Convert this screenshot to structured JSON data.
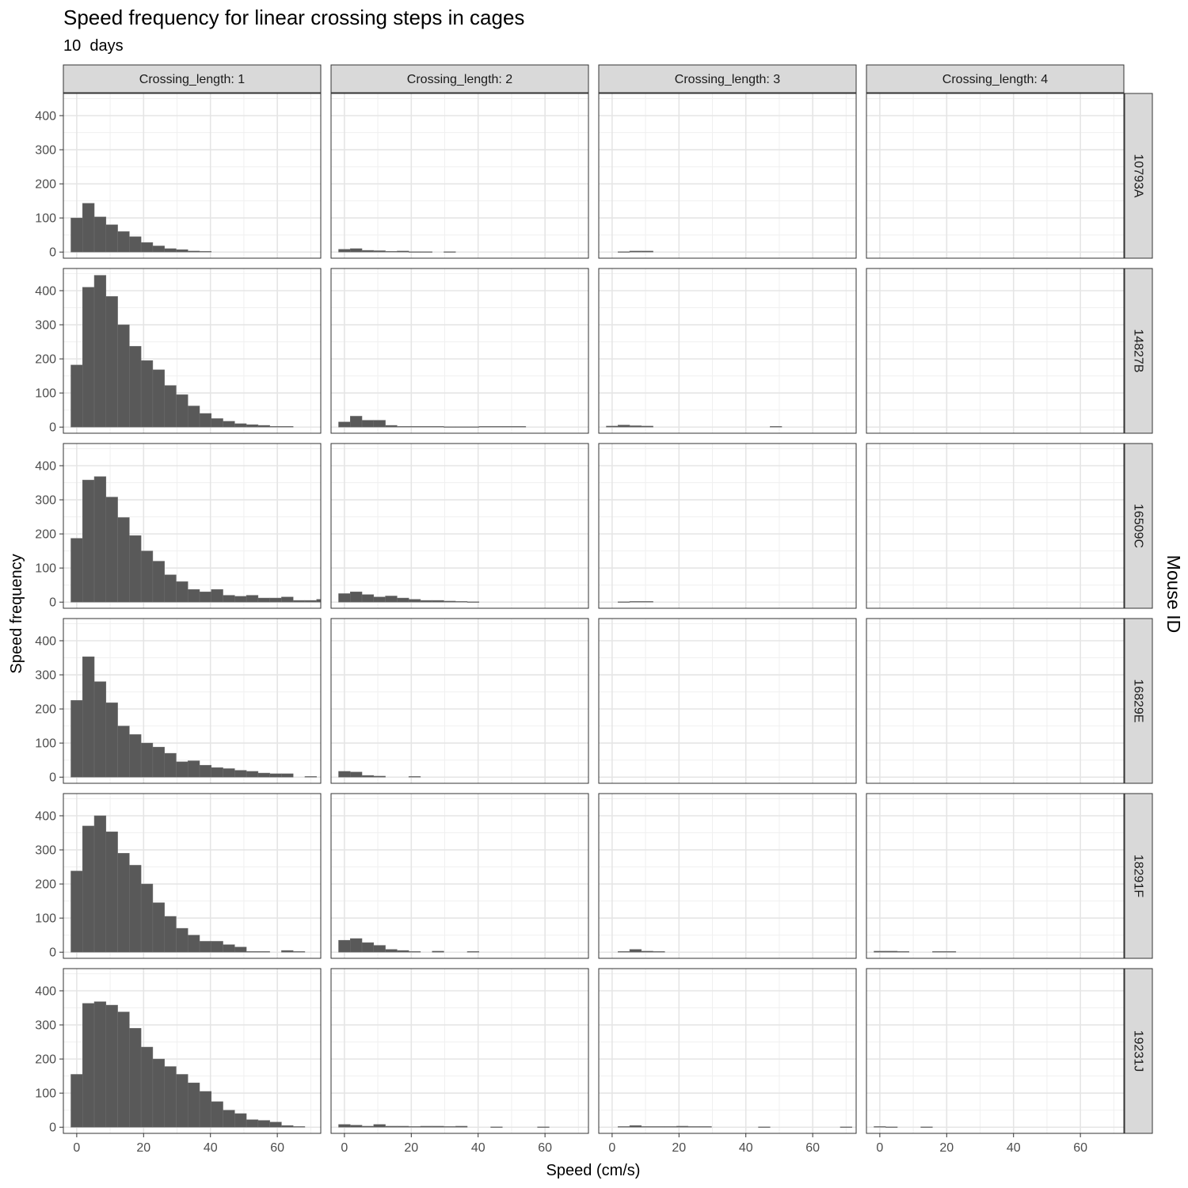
{
  "chart_data": {
    "type": "bar",
    "title": "Speed frequency for linear crossing steps in cages",
    "subtitle": "10  days",
    "xlabel": "Speed (cm/s)",
    "ylabel": "Speed frequency",
    "row_facet_label": "Mouse ID",
    "xlim": [
      -4,
      73
    ],
    "ylim": [
      -18,
      465
    ],
    "x_ticks": [
      0,
      20,
      40,
      60
    ],
    "y_ticks": [
      0,
      100,
      200,
      300,
      400
    ],
    "grid": true,
    "bin_width": 3.5,
    "bin_start": -1.75,
    "columns": [
      "Crossing_length: 1",
      "Crossing_length: 2",
      "Crossing_length: 3",
      "Crossing_length: 4"
    ],
    "rows": [
      "10793A",
      "14827B",
      "16509C",
      "16829E",
      "18291F",
      "19231J"
    ],
    "panels": [
      [
        [
          100,
          143,
          103,
          80,
          60,
          45,
          28,
          18,
          10,
          7,
          3,
          2
        ],
        [
          8,
          10,
          5,
          4,
          2,
          3,
          1,
          1,
          0,
          1
        ],
        [
          0,
          1,
          3,
          3
        ],
        []
      ],
      [
        [
          182,
          410,
          445,
          383,
          300,
          237,
          195,
          168,
          122,
          95,
          62,
          40,
          25,
          17,
          10,
          7,
          5,
          2,
          2
        ],
        [
          15,
          32,
          20,
          20,
          5,
          2,
          2,
          2,
          2,
          1,
          1,
          1,
          2,
          2,
          2,
          2
        ],
        [
          3,
          6,
          4,
          3,
          0,
          0,
          0,
          0,
          0,
          0,
          0,
          0,
          0,
          0,
          2
        ],
        []
      ],
      [
        [
          187,
          358,
          368,
          308,
          248,
          195,
          150,
          120,
          80,
          60,
          37,
          30,
          37,
          20,
          17,
          20,
          12,
          12,
          15,
          5,
          5,
          8,
          0,
          0,
          0,
          0,
          2
        ],
        [
          25,
          30,
          22,
          15,
          18,
          12,
          8,
          5,
          5,
          3,
          2,
          1
        ],
        [
          0,
          1,
          2,
          2
        ],
        []
      ],
      [
        [
          225,
          353,
          280,
          218,
          150,
          125,
          100,
          88,
          70,
          45,
          48,
          35,
          28,
          25,
          20,
          17,
          12,
          10,
          10,
          0,
          2
        ],
        [
          17,
          15,
          5,
          3,
          0,
          0,
          2
        ],
        [],
        []
      ],
      [
        [
          238,
          370,
          400,
          353,
          290,
          255,
          200,
          145,
          105,
          70,
          50,
          32,
          32,
          22,
          15,
          2,
          2,
          0,
          5,
          2
        ],
        [
          35,
          40,
          28,
          20,
          8,
          5,
          2,
          0,
          3,
          0,
          0,
          2
        ],
        [
          0,
          2,
          8,
          3,
          2
        ],
        [
          3,
          3,
          2,
          0,
          0,
          2,
          2
        ]
      ],
      [
        [
          155,
          363,
          368,
          358,
          338,
          290,
          235,
          200,
          178,
          155,
          130,
          105,
          75,
          50,
          40,
          22,
          20,
          15,
          5,
          2,
          0,
          0,
          0,
          0,
          0,
          0,
          0,
          0,
          2
        ],
        [
          8,
          6,
          3,
          8,
          3,
          3,
          2,
          3,
          3,
          2,
          3,
          0,
          0,
          1,
          0,
          0,
          0,
          1
        ],
        [
          0,
          2,
          5,
          2,
          2,
          2,
          3,
          2,
          2,
          0,
          0,
          0,
          0,
          1,
          0,
          0,
          0,
          0,
          0,
          0,
          1,
          0,
          0,
          0,
          0,
          0,
          0,
          1,
          0
        ],
        [
          2,
          1,
          0,
          0,
          1
        ]
      ]
    ]
  }
}
